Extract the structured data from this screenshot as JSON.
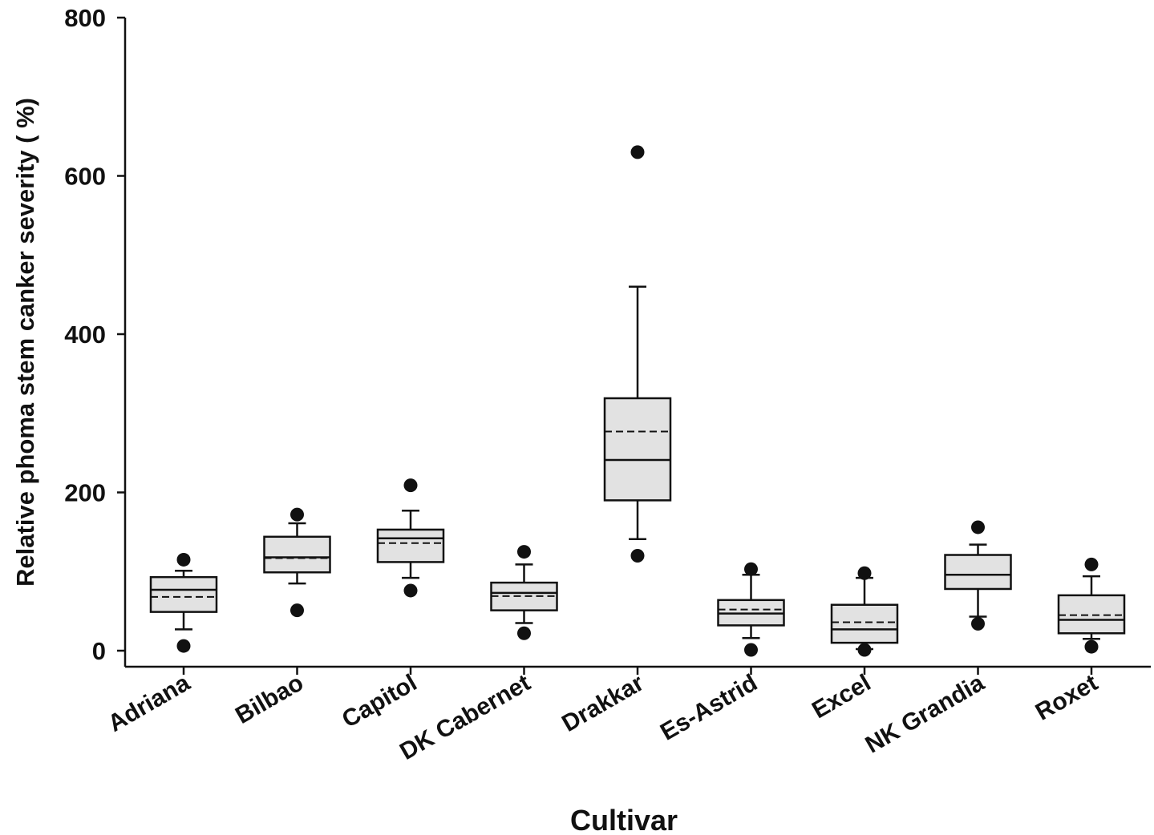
{
  "chart_data": {
    "type": "boxplot",
    "title": "",
    "xlabel": "Cultivar",
    "ylabel": "Relative phoma stem canker severity ( %)",
    "ylim": [
      0,
      800
    ],
    "yticks": [
      "0",
      "200",
      "400",
      "600",
      "800"
    ],
    "grid": false,
    "legend": "none",
    "box_fill": "#e2e2e2",
    "stroke": "#111111",
    "categories": [
      "Adriana",
      "Bilbao",
      "Capitol",
      "DK Cabernet",
      "Drakkar",
      "Es-Astrid",
      "Excel",
      "NK Grandia",
      "Roxet"
    ],
    "boxes": [
      {
        "name": "Adriana",
        "whisker_low": 27,
        "q1": 49,
        "median": 77,
        "mean": 68,
        "q3": 93,
        "whisker_high": 101,
        "outliers": [
          6,
          115
        ]
      },
      {
        "name": "Bilbao",
        "whisker_low": 85,
        "q1": 99,
        "median": 118,
        "mean": 117,
        "q3": 144,
        "whisker_high": 161,
        "outliers": [
          51,
          172
        ]
      },
      {
        "name": "Capitol",
        "whisker_low": 92,
        "q1": 112,
        "median": 142,
        "mean": 136,
        "q3": 153,
        "whisker_high": 177,
        "outliers": [
          76,
          209
        ]
      },
      {
        "name": "DK Cabernet",
        "whisker_low": 35,
        "q1": 51,
        "median": 73,
        "mean": 69,
        "q3": 86,
        "whisker_high": 109,
        "outliers": [
          22,
          125
        ]
      },
      {
        "name": "Drakkar",
        "whisker_low": 141,
        "q1": 190,
        "median": 241,
        "mean": 277,
        "q3": 319,
        "whisker_high": 460,
        "outliers": [
          120,
          630
        ]
      },
      {
        "name": "Es-Astrid",
        "whisker_low": 16,
        "q1": 32,
        "median": 47,
        "mean": 52,
        "q3": 64,
        "whisker_high": 96,
        "outliers": [
          1,
          103
        ]
      },
      {
        "name": "Excel",
        "whisker_low": 2,
        "q1": 10,
        "median": 27,
        "mean": 36,
        "q3": 58,
        "whisker_high": 92,
        "outliers": [
          1,
          98
        ]
      },
      {
        "name": "NK Grandia",
        "whisker_low": 43,
        "q1": 78,
        "median": 96,
        "mean": 96,
        "q3": 121,
        "whisker_high": 134,
        "outliers": [
          34,
          156
        ]
      },
      {
        "name": "Roxet",
        "whisker_low": 15,
        "q1": 22,
        "median": 39,
        "mean": 45,
        "q3": 70,
        "whisker_high": 94,
        "outliers": [
          5,
          109
        ]
      }
    ]
  }
}
